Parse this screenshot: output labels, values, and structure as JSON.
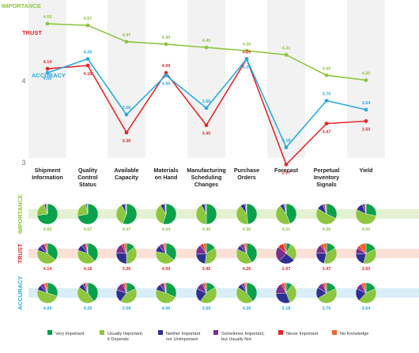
{
  "chart_data": {
    "type": "line",
    "categories": [
      [
        "Shipment",
        "Information"
      ],
      [
        "Quality",
        "Control",
        "Status"
      ],
      [
        "Available",
        "Capacity"
      ],
      [
        "Materials",
        "on Hand"
      ],
      [
        "Manufacturing",
        "Scheduling",
        "Changes"
      ],
      [
        "Purchase",
        "Orders"
      ],
      [
        "Forecast"
      ],
      [
        "Perpetual",
        "Inventory",
        "Signals"
      ],
      [
        "Yield"
      ]
    ],
    "yticks": [
      "4",
      "3"
    ],
    "ylim": [
      2.78,
      4.98
    ],
    "grid": "alternating vertical column bands",
    "series": [
      {
        "name": "IMPORTANCE",
        "color": "#8dc63f",
        "values": [
          4.69,
          4.67,
          4.47,
          4.44,
          4.4,
          4.36,
          4.31,
          4.06,
          4.0
        ],
        "labels": [
          "4.69",
          "4.67",
          "4.47",
          "4.44",
          "4.40",
          "4.36",
          "4.31",
          "4.06",
          "4.00"
        ]
      },
      {
        "name": "TRUST",
        "color": "#e8272a",
        "values": [
          4.14,
          4.18,
          3.36,
          4.09,
          3.45,
          4.26,
          2.97,
          3.47,
          3.5
        ],
        "labels": [
          "4.14",
          "4.18",
          "3.36",
          "4.09",
          "3.45",
          "4.26",
          "2.97",
          "3.47",
          "3.50"
        ]
      },
      {
        "name": "ACCURACY",
        "color": "#29abe2",
        "values": [
          4.09,
          4.26,
          3.58,
          4.06,
          3.66,
          4.26,
          3.18,
          3.75,
          3.64
        ],
        "labels": [
          "4.09",
          "4.26",
          "3.58",
          "4.06",
          "3.66",
          "4.26",
          "3.18",
          "3.75",
          "3.64"
        ]
      }
    ],
    "pie_rows": [
      {
        "name": "IMPORTANCE",
        "pies": [
          [
            0.73,
            0.22,
            0.03,
            0.01,
            0.005,
            0.005
          ],
          [
            0.72,
            0.25,
            0.02,
            0.005,
            0.005,
            0.0
          ],
          [
            0.56,
            0.36,
            0.05,
            0.02,
            0.005,
            0.005
          ],
          [
            0.55,
            0.36,
            0.06,
            0.02,
            0.005,
            0.005
          ],
          [
            0.5,
            0.42,
            0.05,
            0.02,
            0.005,
            0.005
          ],
          [
            0.48,
            0.42,
            0.07,
            0.02,
            0.005,
            0.005
          ],
          [
            0.44,
            0.46,
            0.06,
            0.02,
            0.01,
            0.01
          ],
          [
            0.32,
            0.52,
            0.1,
            0.03,
            0.01,
            0.02
          ],
          [
            0.28,
            0.54,
            0.12,
            0.04,
            0.01,
            0.01
          ]
        ]
      },
      {
        "name": "TRUST",
        "pies": [
          [
            0.36,
            0.44,
            0.07,
            0.08,
            0.02,
            0.03
          ],
          [
            0.38,
            0.42,
            0.1,
            0.06,
            0.02,
            0.02
          ],
          [
            0.14,
            0.36,
            0.26,
            0.16,
            0.04,
            0.04
          ],
          [
            0.36,
            0.42,
            0.1,
            0.07,
            0.02,
            0.03
          ],
          [
            0.16,
            0.36,
            0.22,
            0.16,
            0.05,
            0.05
          ],
          [
            0.42,
            0.4,
            0.07,
            0.06,
            0.02,
            0.03
          ],
          [
            0.08,
            0.28,
            0.26,
            0.24,
            0.09,
            0.05
          ],
          [
            0.16,
            0.38,
            0.22,
            0.14,
            0.04,
            0.06
          ],
          [
            0.18,
            0.36,
            0.2,
            0.1,
            0.04,
            0.12
          ]
        ]
      },
      {
        "name": "ACCURACY",
        "pies": [
          [
            0.3,
            0.5,
            0.08,
            0.06,
            0.02,
            0.04
          ],
          [
            0.4,
            0.44,
            0.08,
            0.04,
            0.02,
            0.02
          ],
          [
            0.18,
            0.42,
            0.2,
            0.14,
            0.03,
            0.03
          ],
          [
            0.32,
            0.48,
            0.1,
            0.06,
            0.02,
            0.02
          ],
          [
            0.16,
            0.44,
            0.22,
            0.12,
            0.03,
            0.03
          ],
          [
            0.4,
            0.44,
            0.08,
            0.04,
            0.02,
            0.02
          ],
          [
            0.1,
            0.34,
            0.3,
            0.18,
            0.04,
            0.04
          ],
          [
            0.18,
            0.48,
            0.18,
            0.1,
            0.03,
            0.03
          ],
          [
            0.18,
            0.44,
            0.2,
            0.1,
            0.03,
            0.05
          ]
        ]
      }
    ],
    "legend": [
      {
        "lines": [
          "Very Important"
        ],
        "color": "#0aa14b"
      },
      {
        "lines": [
          "Usually Important,",
          "it Depends"
        ],
        "color": "#8dc63f"
      },
      {
        "lines": [
          "Neither Important",
          "nor Unimportant"
        ],
        "color": "#2e3192"
      },
      {
        "lines": [
          "Sometimes Important,",
          "but Usually Not"
        ],
        "color": "#7b2f8e"
      },
      {
        "lines": [
          "Never Important"
        ],
        "color": "#e8272a"
      },
      {
        "lines": [
          "No Knowledge"
        ],
        "color": "#f26522"
      }
    ]
  }
}
